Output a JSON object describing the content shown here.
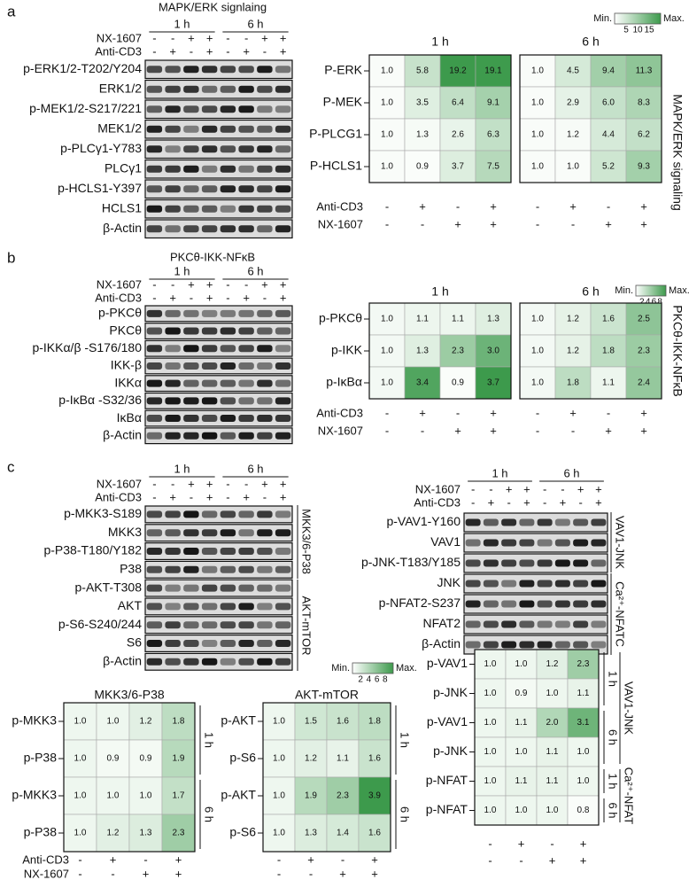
{
  "a": {
    "letter": "a",
    "title": "MAPK/ERK signlaing",
    "times": [
      "1 h",
      "6 h"
    ],
    "conditions": [
      {
        "name": "NX-1607",
        "signs": [
          "-",
          "-",
          "+",
          "+",
          "-",
          "-",
          "+",
          "+"
        ]
      },
      {
        "name": "Anti-CD3",
        "signs": [
          "-",
          "+",
          "-",
          "+",
          "-",
          "+",
          "-",
          "+"
        ]
      }
    ],
    "blots": [
      "p-ERK1/2-T202/Y204",
      "ERK1/2",
      "p-MEK1/2-S217/221",
      "MEK1/2",
      "p-PLCγ1-Y783",
      "PLCγ1",
      "p-HCLS1-Y397",
      "HCLS1",
      "β-Actin"
    ],
    "legend": {
      "min": "Min.",
      "max": "Max.",
      "ticks": [
        5,
        10,
        15
      ]
    },
    "heatmaps": [
      {
        "title": "1 h",
        "rows": [
          {
            "label": "P-ERK",
            "values": [
              "1.0",
              "5.8",
              "19.2",
              "19.1"
            ]
          },
          {
            "label": "P-MEK",
            "values": [
              "1.0",
              "3.5",
              "6.4",
              "9.1"
            ]
          },
          {
            "label": "P-PLCG1",
            "values": [
              "1.0",
              "1.3",
              "2.6",
              "6.3"
            ]
          },
          {
            "label": "P-HCLS1",
            "values": [
              "1.0",
              "0.9",
              "3.7",
              "7.5"
            ]
          }
        ]
      },
      {
        "title": "6 h",
        "rows": [
          {
            "values": [
              "1.0",
              "4.5",
              "9.4",
              "11.3"
            ]
          },
          {
            "values": [
              "1.0",
              "2.9",
              "6.0",
              "8.3"
            ]
          },
          {
            "values": [
              "1.0",
              "1.2",
              "4.4",
              "6.2"
            ]
          },
          {
            "values": [
              "1.0",
              "1.0",
              "5.2",
              "9.3"
            ]
          }
        ]
      }
    ],
    "side_label": "MAPK/ERK signaling",
    "x_conditions": [
      {
        "name": "Anti-CD3",
        "signs": [
          "-",
          "+",
          "-",
          "+"
        ]
      },
      {
        "name": "NX-1607",
        "signs": [
          "-",
          "-",
          "+",
          "+"
        ]
      }
    ]
  },
  "b": {
    "letter": "b",
    "title": "PKCθ-IKK-NFκB",
    "times": [
      "1 h",
      "6 h"
    ],
    "conditions": [
      {
        "name": "NX-1607",
        "signs": [
          "-",
          "-",
          "+",
          "+",
          "-",
          "-",
          "+",
          "+"
        ]
      },
      {
        "name": "Anti-CD3",
        "signs": [
          "-",
          "+",
          "-",
          "+",
          "-",
          "+",
          "-",
          "+"
        ]
      }
    ],
    "blots": [
      "p-PKCθ",
      "PKCθ",
      "p-IKKα/β -S176/180",
      "IKK-β",
      "IKKα",
      "p-IκBα -S32/36",
      "IκBα",
      "β-Actin"
    ],
    "legend": {
      "min": "Min.",
      "max": "Max.",
      "ticks": [
        2,
        4,
        6,
        8
      ]
    },
    "heatmaps": [
      {
        "title": "1 h",
        "rows": [
          {
            "label": "p-PKCθ",
            "values": [
              "1.0",
              "1.1",
              "1.1",
              "1.3"
            ]
          },
          {
            "label": "p-IKK",
            "values": [
              "1.0",
              "1.3",
              "2.3",
              "3.0"
            ]
          },
          {
            "label": "p-IκBα",
            "values": [
              "1.0",
              "3.4",
              "0.9",
              "3.7"
            ]
          }
        ]
      },
      {
        "title": "6 h",
        "rows": [
          {
            "values": [
              "1.0",
              "1.2",
              "1.6",
              "2.5"
            ]
          },
          {
            "values": [
              "1.0",
              "1.2",
              "1.8",
              "2.3"
            ]
          },
          {
            "values": [
              "1.0",
              "1.8",
              "1.1",
              "2.4"
            ]
          }
        ]
      }
    ],
    "side_label": "PKCθ-IKK-NFκB",
    "x_conditions": [
      {
        "name": "Anti-CD3",
        "signs": [
          "-",
          "+",
          "-",
          "+"
        ]
      },
      {
        "name": "NX-1607",
        "signs": [
          "-",
          "-",
          "+",
          "+"
        ]
      }
    ]
  },
  "c": {
    "letter": "c",
    "left_blot": {
      "times": [
        "1 h",
        "6 h"
      ],
      "conditions": [
        {
          "name": "NX-1607",
          "signs": [
            "-",
            "-",
            "+",
            "+",
            "-",
            "-",
            "+",
            "+"
          ]
        },
        {
          "name": "Anti-CD3",
          "signs": [
            "-",
            "+",
            "-",
            "+",
            "-",
            "+",
            "-",
            "+"
          ]
        }
      ],
      "blots": [
        "p-MKK3-S189",
        "MKK3",
        "p-P38-T180/Y182",
        "P38",
        "p-AKT-T308",
        "AKT",
        "p-S6-S240/244",
        "S6",
        "β-Actin"
      ],
      "groups": [
        "MKK3/6-P38",
        "AKT-mTOR"
      ]
    },
    "right_blot": {
      "times": [
        "1 h",
        "6 h"
      ],
      "conditions": [
        {
          "name": "NX-1607",
          "signs": [
            "-",
            "-",
            "+",
            "+",
            "-",
            "-",
            "+",
            "+"
          ]
        },
        {
          "name": "Anti-CD3",
          "signs": [
            "-",
            "+",
            "-",
            "+",
            "-",
            "+",
            "-",
            "+"
          ]
        }
      ],
      "blots": [
        "p-VAV1-Y160",
        "VAV1",
        "p-JNK-T183/Y185",
        "JNK",
        "p-NFAT2-S237",
        "NFAT2",
        "β-Actin"
      ],
      "groups": [
        "VAV1-JNK",
        "Ca²⁺-NFATC"
      ]
    },
    "legend": {
      "min": "Min.",
      "max": "Max.",
      "ticks": [
        2,
        4,
        6,
        8
      ]
    },
    "heatmaps": [
      {
        "title": "MKK3/6-P38",
        "times": [
          "1 h",
          "6 h"
        ],
        "rows": [
          {
            "label": "p-MKK3",
            "values": [
              "1.0",
              "1.0",
              "1.2",
              "1.8"
            ]
          },
          {
            "label": "p-P38",
            "values": [
              "1.0",
              "0.9",
              "0.9",
              "1.9"
            ]
          },
          {
            "label": "p-MKK3",
            "values": [
              "1.0",
              "1.0",
              "1.0",
              "1.7"
            ]
          },
          {
            "label": "p-P38",
            "values": [
              "1.0",
              "1.2",
              "1.3",
              "2.3"
            ]
          }
        ]
      },
      {
        "title": "AKT-mTOR",
        "times": [
          "1 h",
          "6 h"
        ],
        "rows": [
          {
            "label": "p-AKT",
            "values": [
              "1.0",
              "1.5",
              "1.6",
              "1.8"
            ]
          },
          {
            "label": "p-S6",
            "values": [
              "1.0",
              "1.2",
              "1.1",
              "1.6"
            ]
          },
          {
            "label": "p-AKT",
            "values": [
              "1.0",
              "1.9",
              "2.3",
              "3.9"
            ]
          },
          {
            "label": "p-S6",
            "values": [
              "1.0",
              "1.3",
              "1.4",
              "1.6"
            ]
          }
        ]
      },
      {
        "times": [
          "1 h",
          "6 h",
          "1 h",
          "6 h"
        ],
        "groups": [
          "VAV1-JNK",
          "Ca²⁺-NFAT"
        ],
        "rows": [
          {
            "label": "p-VAV1",
            "values": [
              "1.0",
              "1.0",
              "1.2",
              "2.3"
            ]
          },
          {
            "label": "p-JNK",
            "values": [
              "1.0",
              "0.9",
              "1.0",
              "1.1"
            ]
          },
          {
            "label": "p-VAV1",
            "values": [
              "1.0",
              "1.1",
              "2.0",
              "3.1"
            ]
          },
          {
            "label": "p-JNK",
            "values": [
              "1.0",
              "1.0",
              "1.1",
              "1.0"
            ]
          },
          {
            "label": "p-NFAT",
            "values": [
              "1.0",
              "1.1",
              "1.1",
              "1.0"
            ]
          },
          {
            "label": "p-NFAT",
            "values": [
              "1.0",
              "1.0",
              "1.0",
              "0.8"
            ]
          }
        ]
      }
    ],
    "x_conditions": [
      {
        "name": "Anti-CD3",
        "signs": [
          "-",
          "+",
          "-",
          "+"
        ]
      },
      {
        "name": "NX-1607",
        "signs": [
          "-",
          "-",
          "+",
          "+"
        ]
      }
    ]
  }
}
